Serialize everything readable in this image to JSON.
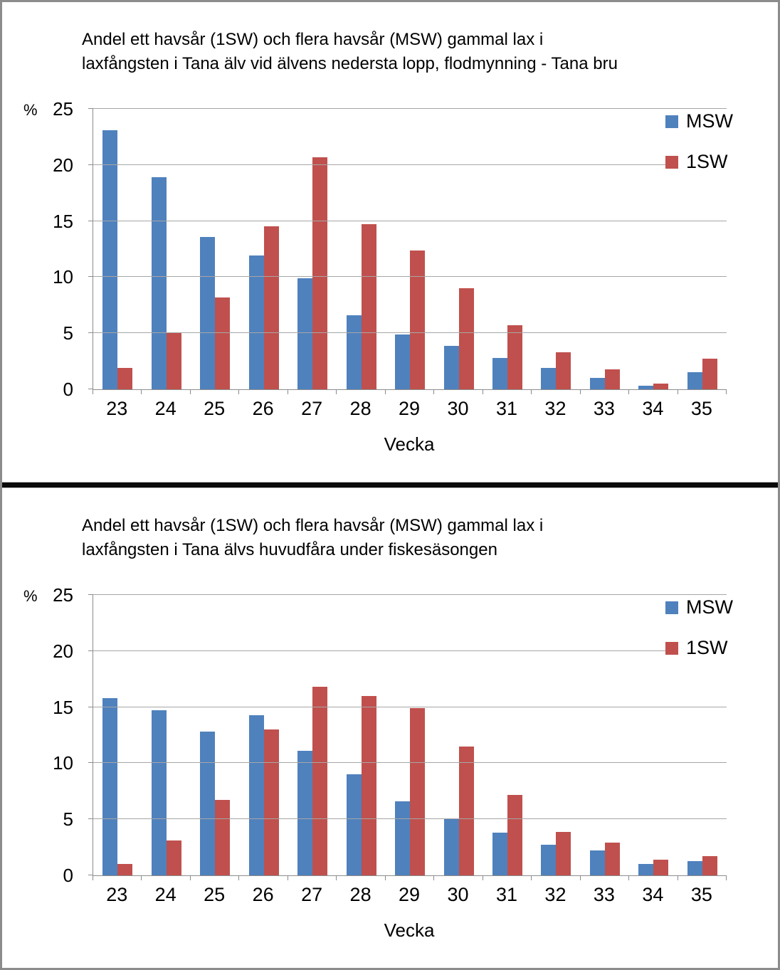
{
  "page": {
    "background": "#ffffff",
    "frame_border_color": "#8c8c8c",
    "divider_color": "#0a0a0a"
  },
  "colors": {
    "msw_blue": "#4F81BD",
    "sw1_red": "#C0504D",
    "gridline_gray": "#a6a6a6",
    "axis_gray": "#8c8c8c",
    "text_black": "#000000"
  },
  "chart_data": [
    {
      "type": "bar",
      "title": "Andel ett havsår (1SW) och flera havsår (MSW) gammal lax i laxfångsten i Tana älv vid älvens nedersta lopp, flodmynning - Tana bru",
      "title_lines": [
        "Andel ett havsår (1SW) och flera havsår (MSW) gammal lax i",
        "laxfångsten i Tana älv vid älvens nedersta lopp, flodmynning - Tana bru"
      ],
      "xlabel": "Vecka",
      "ylabel": "%",
      "ylim": [
        0,
        25
      ],
      "yticks": [
        0,
        5,
        10,
        15,
        20,
        25
      ],
      "grid": true,
      "legend_position": "top-right",
      "categories": [
        "23",
        "24",
        "25",
        "26",
        "27",
        "28",
        "29",
        "30",
        "31",
        "32",
        "33",
        "34",
        "35"
      ],
      "series": [
        {
          "name": "MSW",
          "color": "#4F81BD",
          "values": [
            23.1,
            18.9,
            13.6,
            11.9,
            9.9,
            6.6,
            4.9,
            3.9,
            2.8,
            1.9,
            1.0,
            0.3,
            1.5
          ]
        },
        {
          "name": "1SW",
          "color": "#C0504D",
          "values": [
            1.9,
            5.0,
            8.2,
            14.5,
            20.7,
            14.7,
            12.4,
            9.0,
            5.7,
            3.3,
            1.8,
            0.5,
            2.7
          ]
        }
      ]
    },
    {
      "type": "bar",
      "title": "Andel ett havsår (1SW) och flera havsår (MSW) gammal lax i laxfångsten i Tana älvs huvudfåra under fiskesäsongen",
      "title_lines": [
        "Andel ett havsår (1SW) och flera havsår (MSW) gammal lax i",
        "laxfångsten i Tana älvs huvudfåra under fiskesäsongen"
      ],
      "xlabel": "Vecka",
      "ylabel": "%",
      "ylim": [
        0,
        25
      ],
      "yticks": [
        0,
        5,
        10,
        15,
        20,
        25
      ],
      "grid": true,
      "legend_position": "top-right",
      "categories": [
        "23",
        "24",
        "25",
        "26",
        "27",
        "28",
        "29",
        "30",
        "31",
        "32",
        "33",
        "34",
        "35"
      ],
      "series": [
        {
          "name": "MSW",
          "color": "#4F81BD",
          "values": [
            15.8,
            14.7,
            12.8,
            14.3,
            11.1,
            9.0,
            6.6,
            5.0,
            3.8,
            2.7,
            2.2,
            1.0,
            1.3
          ]
        },
        {
          "name": "1SW",
          "color": "#C0504D",
          "values": [
            1.0,
            3.1,
            6.7,
            13.0,
            16.8,
            16.0,
            14.9,
            11.5,
            7.2,
            3.9,
            2.9,
            1.4,
            1.7
          ]
        }
      ]
    }
  ]
}
